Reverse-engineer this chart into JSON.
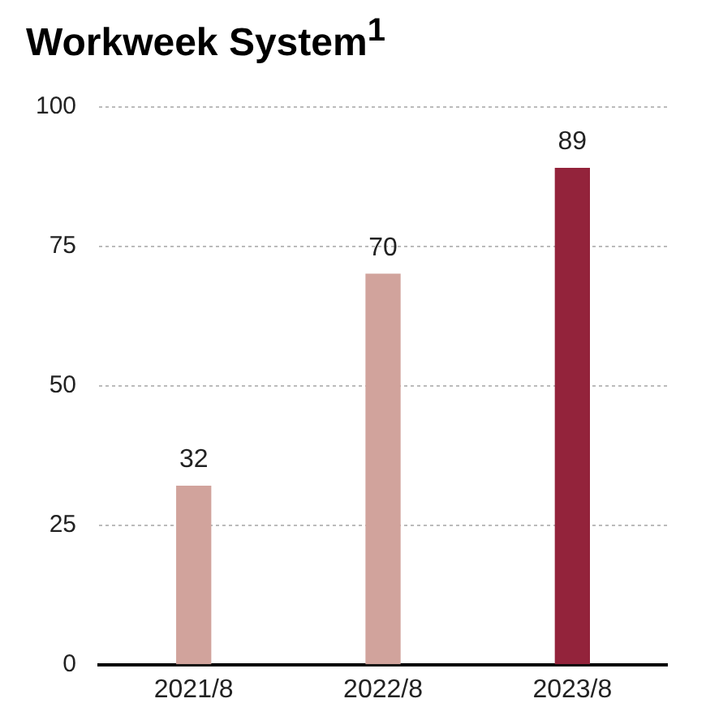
{
  "chart_data": {
    "type": "bar",
    "title": "Workweek System$^{1}$",
    "categories": [
      "2021/8",
      "2022/8",
      "2023/8"
    ],
    "values": [
      32,
      70,
      89
    ],
    "colors": [
      "#d1a39c",
      "#d1a39c",
      "#93233b"
    ],
    "ylim": [
      0,
      100
    ],
    "yticks": [
      0,
      25,
      50,
      75,
      100
    ],
    "grid": "y",
    "data_labels": true,
    "legend": false
  }
}
